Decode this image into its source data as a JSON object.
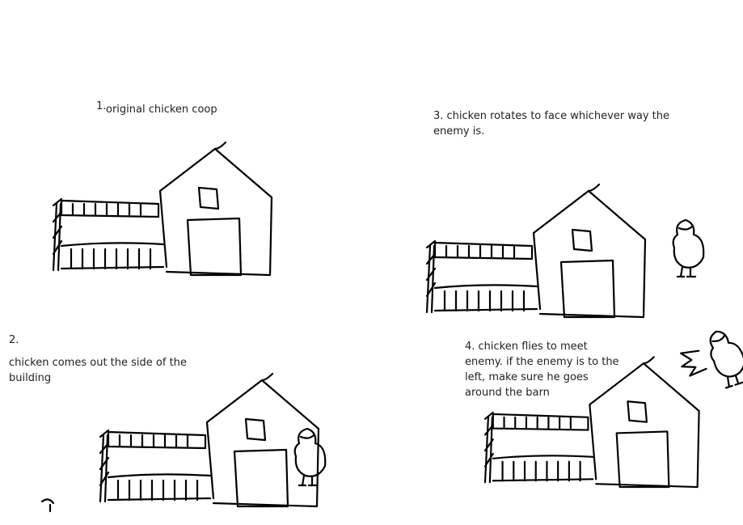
{
  "panels": [
    {
      "number": "1.",
      "caption": "original chicken coop"
    },
    {
      "number": "2.",
      "caption": "chicken comes out the side of the building"
    },
    {
      "number": "3.",
      "caption": "3. chicken rotates to face whichever way the enemy is."
    },
    {
      "number": "4.",
      "caption": "4. chicken flies to meet enemy. if the enemy is to the left, make sure he goes around the barn"
    }
  ],
  "colors": {
    "background": "#ffffff",
    "ink": "#000000"
  },
  "icons": [
    "coop-drawing",
    "chicken-drawing"
  ]
}
